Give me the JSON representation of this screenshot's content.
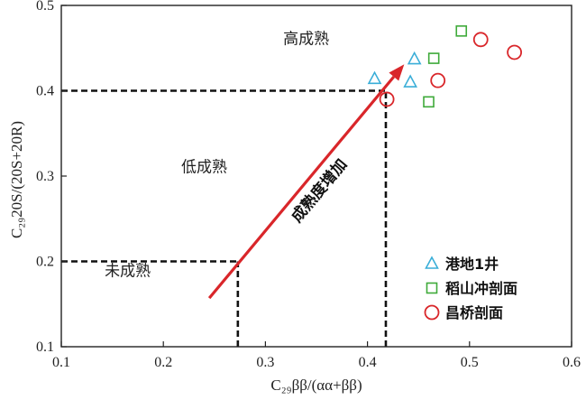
{
  "chart_data": {
    "type": "scatter",
    "xlabel": "C₂₉ββ/(αα+ββ)",
    "ylabel": "C₂₉20S/(20S+20R)",
    "xlim": [
      0.1,
      0.6
    ],
    "ylim": [
      0.1,
      0.5
    ],
    "xticks": [
      "0.1",
      "0.2",
      "0.3",
      "0.4",
      "0.5",
      "0.6"
    ],
    "yticks": [
      "0.1",
      "0.2",
      "0.3",
      "0.4",
      "0.5"
    ],
    "grid": false,
    "legend_position": "bottom-right",
    "series": [
      {
        "name": "港地1井",
        "marker": "triangle",
        "color": "#3aaed8",
        "points": [
          [
            0.407,
            0.414
          ],
          [
            0.446,
            0.437
          ],
          [
            0.442,
            0.41
          ]
        ]
      },
      {
        "name": "稻山冲剖面",
        "marker": "square",
        "color": "#3faa3a",
        "points": [
          [
            0.492,
            0.47
          ],
          [
            0.465,
            0.438
          ],
          [
            0.46,
            0.387
          ]
        ]
      },
      {
        "name": "昌桥剖面",
        "marker": "circle",
        "color": "#d9262a",
        "points": [
          [
            0.511,
            0.46
          ],
          [
            0.544,
            0.445
          ],
          [
            0.469,
            0.412
          ],
          [
            0.419,
            0.39
          ]
        ]
      }
    ],
    "zones": [
      {
        "label": "高成熟",
        "x": 0.34,
        "y": 0.455
      },
      {
        "label": "低成熟",
        "x": 0.24,
        "y": 0.305
      },
      {
        "label": "未成熟",
        "x": 0.165,
        "y": 0.183
      }
    ],
    "threshold_lines": [
      {
        "from": [
          0.1,
          0.4
        ],
        "to": [
          0.418,
          0.4
        ]
      },
      {
        "from": [
          0.418,
          0.1
        ],
        "to": [
          0.418,
          0.4
        ]
      },
      {
        "from": [
          0.1,
          0.2
        ],
        "to": [
          0.273,
          0.2
        ]
      },
      {
        "from": [
          0.273,
          0.1
        ],
        "to": [
          0.273,
          0.2
        ]
      }
    ],
    "arrow": {
      "label": "成熟度增加",
      "color": "#d9262a",
      "from": [
        0.245,
        0.157
      ],
      "to": [
        0.436,
        0.431
      ]
    }
  }
}
